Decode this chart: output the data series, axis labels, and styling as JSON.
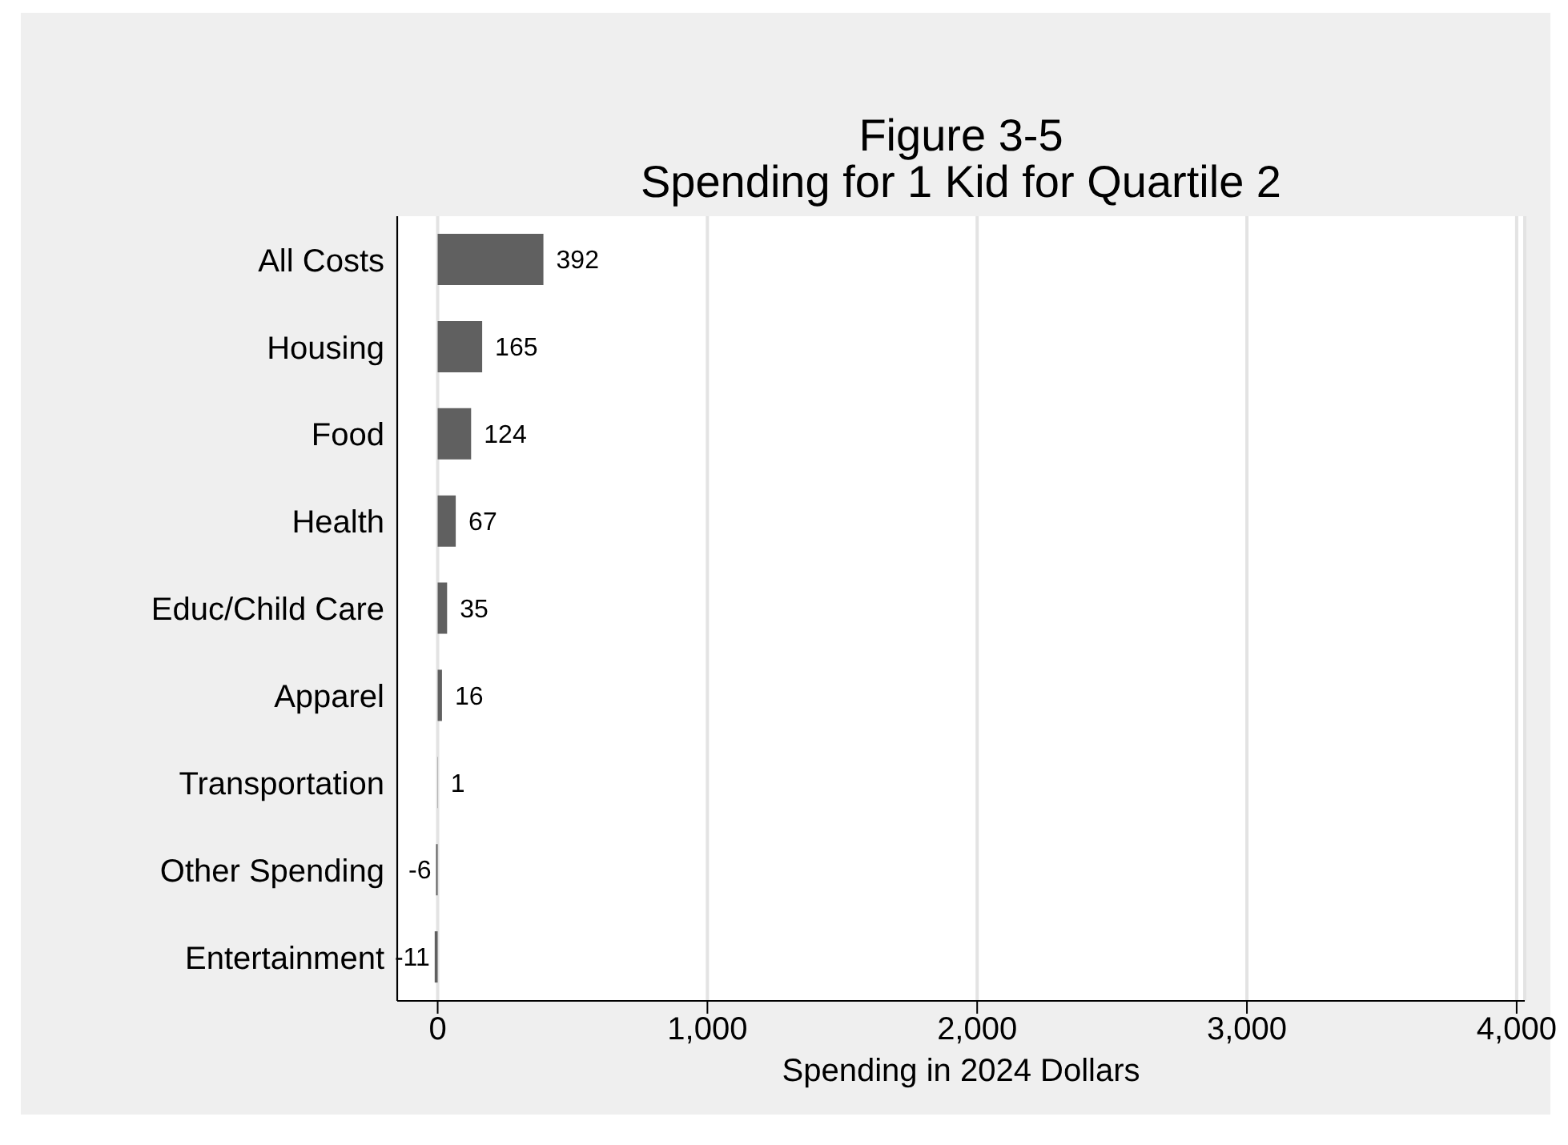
{
  "chart_data": {
    "type": "bar",
    "orientation": "horizontal",
    "title": "Figure 3-5",
    "subtitle": "Spending for 1 Kid for Quartile 2",
    "xlabel": "Spending in 2024 Dollars",
    "categories": [
      "All Costs",
      "Housing",
      "Food",
      "Health",
      "Educ/Child Care",
      "Apparel",
      "Transportation",
      "Other Spending",
      "Entertainment"
    ],
    "values": [
      392,
      165,
      124,
      67,
      35,
      16,
      1,
      -6,
      -11
    ],
    "color": "#606060",
    "data_labels": true,
    "xlim": [
      -150,
      4030
    ],
    "xticks": [
      {
        "value": 0,
        "label": "0"
      },
      {
        "value": 1000,
        "label": "1,000"
      },
      {
        "value": 2000,
        "label": "2,000"
      },
      {
        "value": 3000,
        "label": "3,000"
      },
      {
        "value": 4000,
        "label": "4,000"
      }
    ],
    "grid": "x",
    "legend": false
  }
}
